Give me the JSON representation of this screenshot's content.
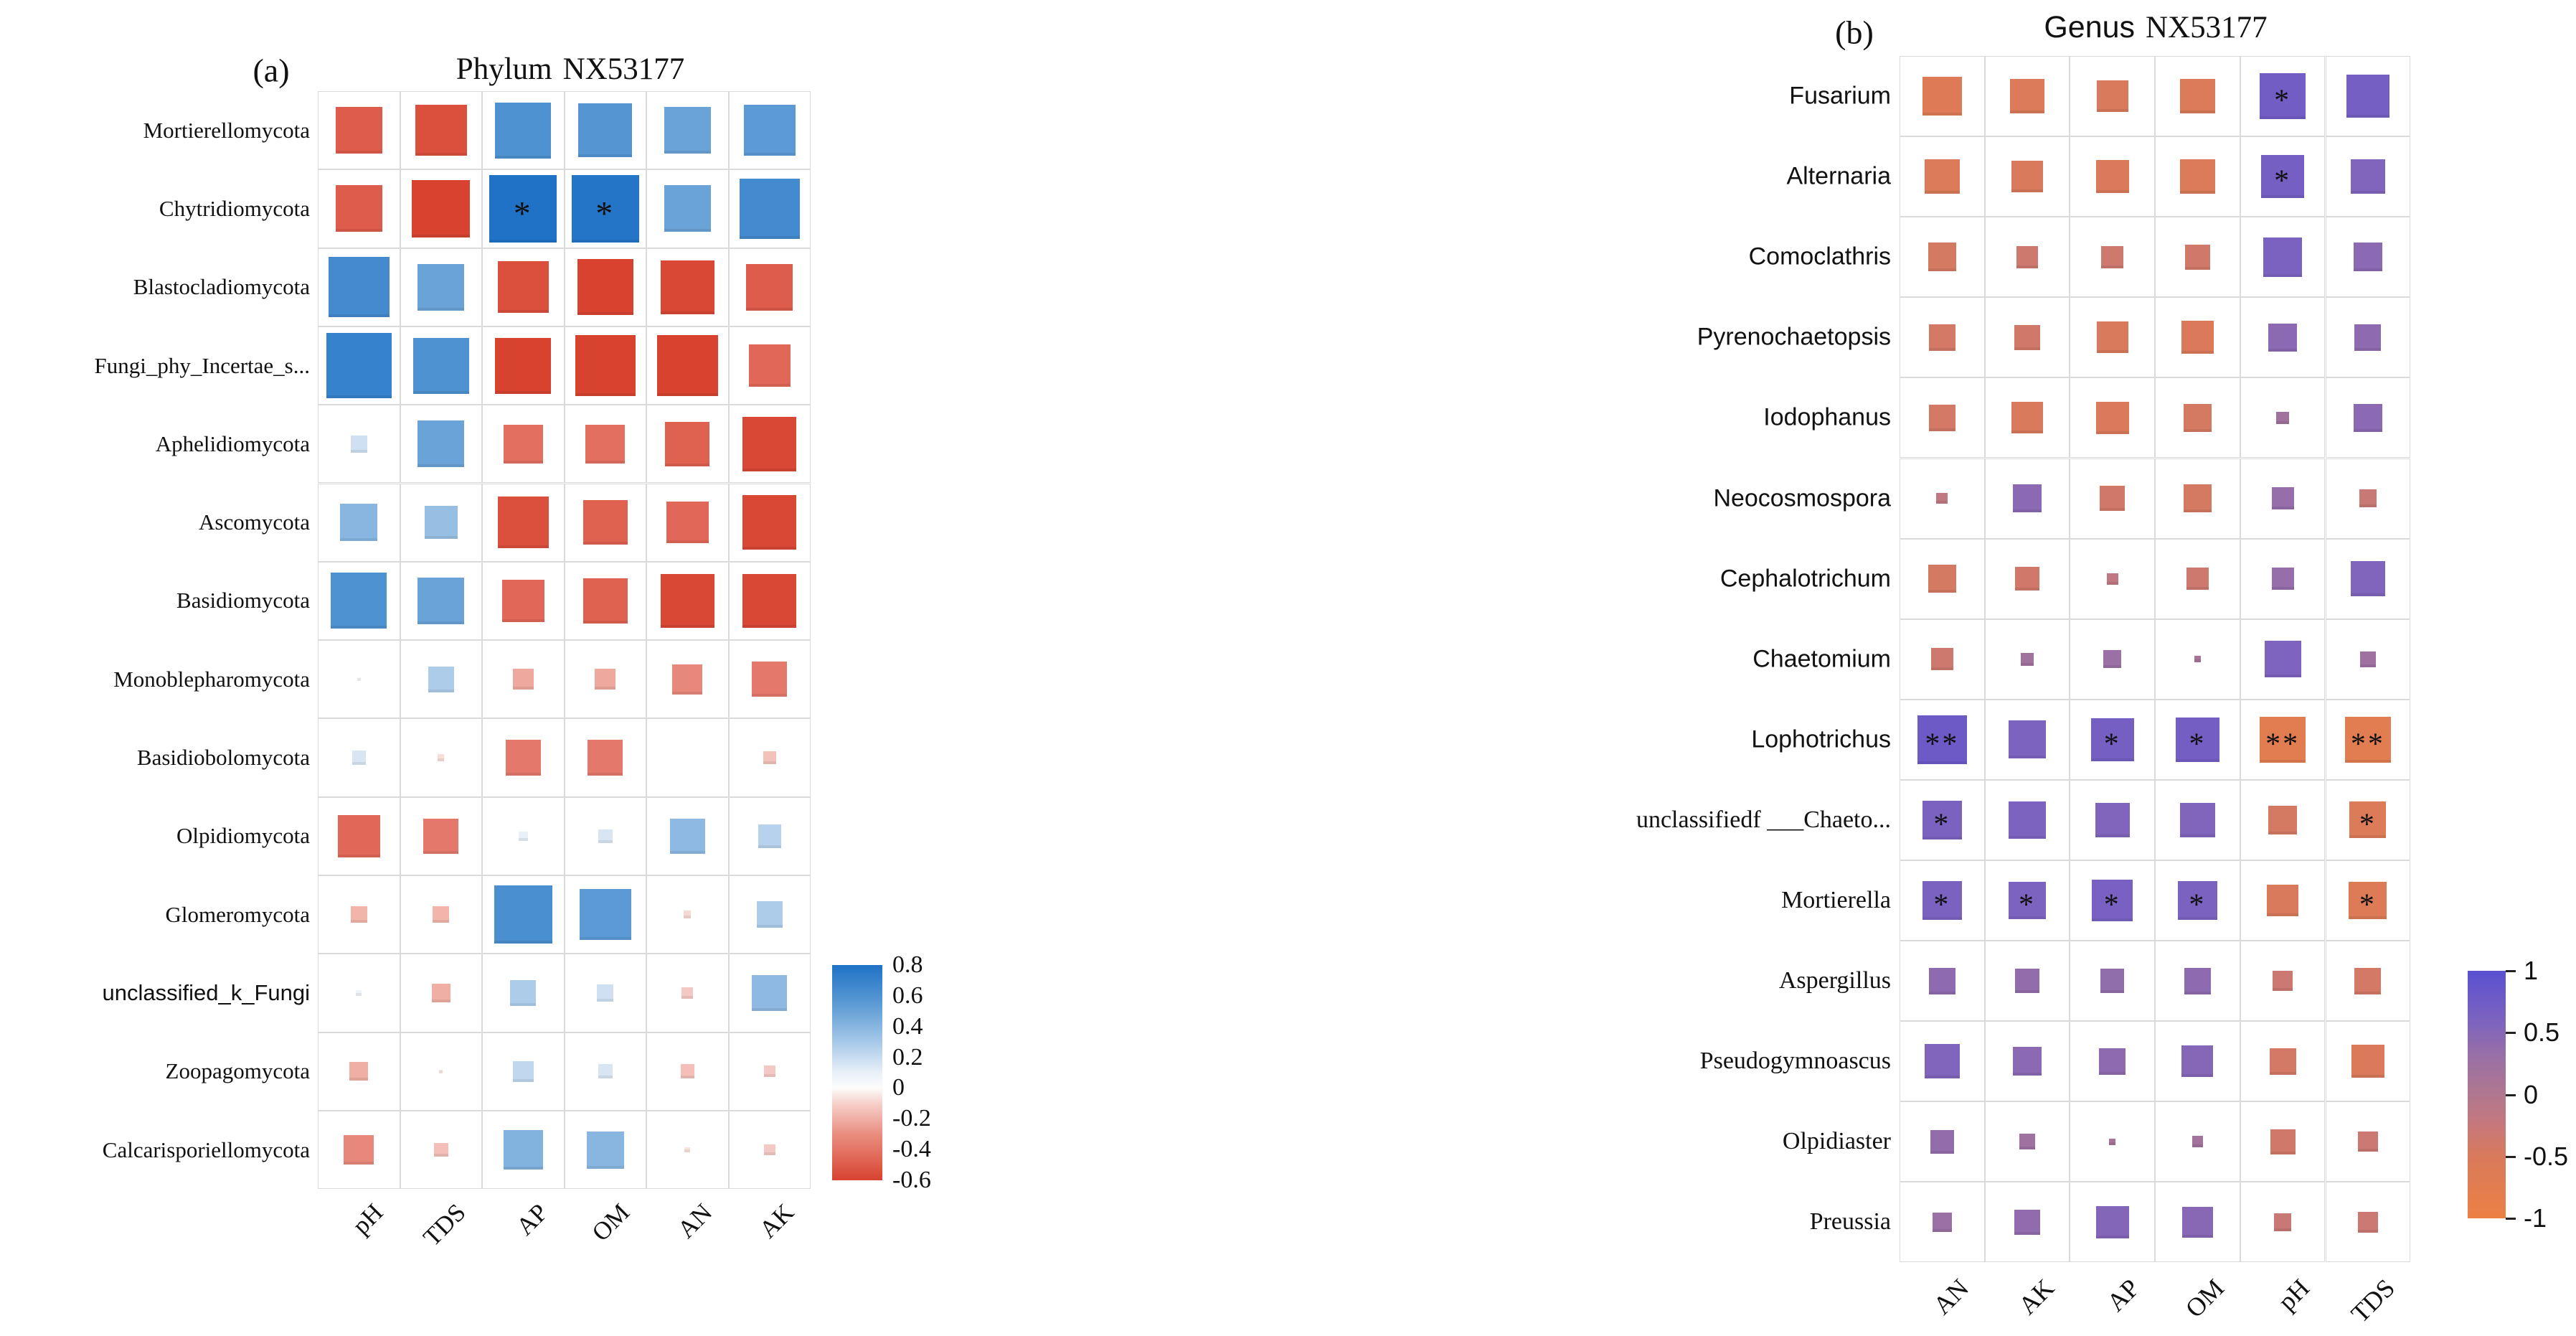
{
  "figure": {
    "background": "#ffffff",
    "gridline_color": "#dadada"
  },
  "chart_data": [
    {
      "type": "heatmap",
      "panel_label": "(a)",
      "title_prefix": "Phylum",
      "title_suffix": "NX53177",
      "encoding": "square size proportional to |correlation|; color = correlation sign/magnitude; * p<0.05",
      "legend_position": "right",
      "columns": [
        "pH",
        "TDS",
        "AP",
        "OM",
        "AN",
        "AK"
      ],
      "value_range": [
        -0.6,
        0.8
      ],
      "colorbar_ticks": [
        "0.8",
        "0.6",
        "0.4",
        "0.2",
        "0",
        "-0.2",
        "-0.4",
        "-0.6"
      ],
      "positive_color": "#1f72c6",
      "negative_color": "#d84330",
      "palette": [
        {
          "v": -0.6,
          "c": "#d84330"
        },
        {
          "v": -0.3,
          "c": "#e98d80"
        },
        {
          "v": -0.1,
          "c": "#f6d0ca"
        },
        {
          "v": 0.0,
          "c": "#fdfcfb"
        },
        {
          "v": 0.1,
          "c": "#e8f0f8"
        },
        {
          "v": 0.3,
          "c": "#a6c8e8"
        },
        {
          "v": 0.55,
          "c": "#5b9ad4"
        },
        {
          "v": 0.8,
          "c": "#1f72c6"
        }
      ],
      "rows": [
        {
          "label": "Mortierellomycota",
          "values": [
            -0.5,
            -0.55,
            0.6,
            0.58,
            0.5,
            0.55
          ],
          "sig": [
            "",
            "",
            "",
            "",
            "",
            ""
          ]
        },
        {
          "label": "Chytridiomycota",
          "values": [
            -0.5,
            -0.62,
            0.8,
            0.78,
            0.5,
            0.65
          ],
          "sig": [
            "",
            "",
            "*",
            "*",
            "",
            ""
          ]
        },
        {
          "label": "Blastocladiomycota",
          "values": [
            0.65,
            0.5,
            -0.55,
            -0.6,
            -0.58,
            -0.5
          ],
          "sig": [
            "",
            "",
            "",
            "",
            "",
            ""
          ]
        },
        {
          "label": "Fungi_phy_Incertae_s...",
          "values": [
            0.7,
            0.6,
            -0.6,
            -0.65,
            -0.65,
            -0.45
          ],
          "sig": [
            "",
            "",
            "",
            "",
            "",
            ""
          ]
        },
        {
          "label": "Aphelidiomycota",
          "values": [
            0.18,
            0.5,
            -0.42,
            -0.42,
            -0.48,
            -0.58
          ],
          "sig": [
            "",
            "",
            "",
            "",
            "",
            ""
          ]
        },
        {
          "label": "Ascomycota",
          "values": [
            0.4,
            0.35,
            -0.55,
            -0.48,
            -0.45,
            -0.58
          ],
          "sig": [
            "",
            "",
            "",
            "",
            "",
            ""
          ]
        },
        {
          "label": "Basidiomycota",
          "values": [
            0.6,
            0.5,
            -0.45,
            -0.48,
            -0.58,
            -0.58
          ],
          "sig": [
            "",
            "",
            "",
            "",
            "",
            ""
          ]
        },
        {
          "label": "Monoblepharomycota",
          "values": [
            0.04,
            0.28,
            -0.22,
            -0.22,
            -0.32,
            -0.38
          ],
          "sig": [
            "",
            "",
            "",
            "",
            "",
            ""
          ]
        },
        {
          "label": "Basidiobolomycota",
          "values": [
            0.15,
            -0.07,
            -0.38,
            -0.38,
            null,
            -0.14
          ],
          "sig": [
            "",
            "",
            "",
            "",
            "",
            ""
          ]
        },
        {
          "label": "Olpidiomycota",
          "values": [
            -0.45,
            -0.38,
            0.1,
            0.15,
            0.38,
            0.25
          ],
          "sig": [
            "",
            "",
            "",
            "",
            "",
            ""
          ]
        },
        {
          "label": "Glomeromycota",
          "values": [
            -0.18,
            -0.18,
            0.62,
            0.55,
            -0.08,
            0.28
          ],
          "sig": [
            "",
            "",
            "",
            "",
            "",
            ""
          ]
        },
        {
          "label": "unclassified_k_Fungi",
          "values": [
            0.06,
            -0.2,
            0.28,
            0.18,
            -0.12,
            0.38
          ],
          "sig": [
            "",
            "",
            "",
            "",
            "",
            ""
          ]
        },
        {
          "label": "Zoopagomycota",
          "values": [
            -0.2,
            -0.04,
            0.22,
            0.15,
            -0.15,
            -0.12
          ],
          "sig": [
            "",
            "",
            "",
            "",
            "",
            ""
          ]
        },
        {
          "label": "Calcarisporiellomycota",
          "values": [
            -0.32,
            -0.15,
            0.42,
            0.4,
            -0.06,
            -0.12
          ],
          "sig": [
            "",
            "",
            "",
            "",
            "",
            ""
          ]
        }
      ]
    },
    {
      "type": "heatmap",
      "panel_label": "(b)",
      "title_prefix": "Genus",
      "title_suffix": "NX53177",
      "encoding": "square size proportional to |correlation|; color = correlation sign/magnitude; * p<0.05, ** p<0.01",
      "legend_position": "right",
      "columns": [
        "AN",
        "AK",
        "AP",
        "OM",
        "pH",
        "TDS"
      ],
      "value_range": [
        -1,
        1
      ],
      "colorbar_ticks": [
        "1",
        "0.5",
        "0",
        "-0.5",
        "-1"
      ],
      "positive_color": "#5a50d0",
      "negative_color": "#ec8044",
      "palette": [
        {
          "v": -1.0,
          "c": "#ec8044"
        },
        {
          "v": -0.5,
          "c": "#d97a5c"
        },
        {
          "v": -0.2,
          "c": "#c27880"
        },
        {
          "v": 0.0,
          "c": "#b0778f"
        },
        {
          "v": 0.3,
          "c": "#9a70a5"
        },
        {
          "v": 0.6,
          "c": "#7c63c0"
        },
        {
          "v": 1.0,
          "c": "#5a50d0"
        }
      ],
      "rows": [
        {
          "label": "Fusarium",
          "values": [
            -0.62,
            -0.55,
            -0.5,
            -0.55,
            0.72,
            0.68
          ],
          "sig": [
            "",
            "",
            "",
            "",
            "*",
            ""
          ]
        },
        {
          "label": "Alternaria",
          "values": [
            -0.55,
            -0.5,
            -0.52,
            -0.55,
            0.68,
            0.55
          ],
          "sig": [
            "",
            "",
            "",
            "",
            "*",
            ""
          ]
        },
        {
          "label": "Comoclathris",
          "values": [
            -0.45,
            -0.35,
            -0.35,
            -0.4,
            0.62,
            0.45
          ],
          "sig": [
            "",
            "",
            "",
            "",
            "",
            ""
          ]
        },
        {
          "label": "Pyrenochaetopsis",
          "values": [
            -0.42,
            -0.4,
            -0.5,
            -0.52,
            0.45,
            0.42
          ],
          "sig": [
            "",
            "",
            "",
            "",
            "",
            ""
          ]
        },
        {
          "label": "Iodophanus",
          "values": [
            -0.42,
            -0.5,
            -0.52,
            -0.45,
            0.2,
            0.45
          ],
          "sig": [
            "",
            "",
            "",
            "",
            "",
            ""
          ]
        },
        {
          "label": "Neocosmospora",
          "values": [
            -0.18,
            0.45,
            -0.4,
            -0.45,
            0.35,
            -0.28
          ],
          "sig": [
            "",
            "",
            "",
            "",
            "",
            ""
          ]
        },
        {
          "label": "Cephalotrichum",
          "values": [
            -0.45,
            -0.38,
            -0.18,
            -0.35,
            0.35,
            0.55
          ],
          "sig": [
            "",
            "",
            "",
            "",
            "",
            ""
          ]
        },
        {
          "label": "Chaetomium",
          "values": [
            -0.35,
            0.2,
            0.28,
            0.1,
            0.58,
            0.25
          ],
          "sig": [
            "",
            "",
            "",
            "",
            "",
            ""
          ]
        },
        {
          "label": "Lophotrichus",
          "values": [
            0.78,
            0.6,
            0.68,
            0.7,
            -0.72,
            -0.72
          ],
          "sig": [
            "**",
            "",
            "*",
            "*",
            "**",
            "**"
          ]
        },
        {
          "label": "unclassifiedf ___Chaeto...",
          "values": [
            0.62,
            0.6,
            0.55,
            0.55,
            -0.45,
            -0.58
          ],
          "sig": [
            "*",
            "",
            "",
            "",
            "",
            "*"
          ]
        },
        {
          "label": "Mortierella",
          "values": [
            0.62,
            0.6,
            0.65,
            0.62,
            -0.5,
            -0.6
          ],
          "sig": [
            "*",
            "*",
            "*",
            "*",
            "",
            "*"
          ]
        },
        {
          "label": "Aspergillus",
          "values": [
            0.42,
            0.38,
            0.38,
            0.42,
            -0.32,
            -0.42
          ],
          "sig": [
            "",
            "",
            "",
            "",
            "",
            ""
          ]
        },
        {
          "label": "Pseudogymnoascus",
          "values": [
            0.55,
            0.45,
            0.42,
            0.5,
            -0.42,
            -0.52
          ],
          "sig": [
            "",
            "",
            "",
            "",
            "",
            ""
          ]
        },
        {
          "label": "Olpidiaster",
          "values": [
            0.38,
            0.25,
            0.1,
            0.18,
            -0.4,
            -0.32
          ],
          "sig": [
            "",
            "",
            "",
            "",
            "",
            ""
          ]
        },
        {
          "label": "Preussia",
          "values": [
            0.3,
            0.4,
            0.52,
            0.48,
            -0.28,
            -0.32
          ],
          "sig": [
            "",
            "",
            "",
            "",
            "",
            ""
          ]
        }
      ]
    }
  ]
}
